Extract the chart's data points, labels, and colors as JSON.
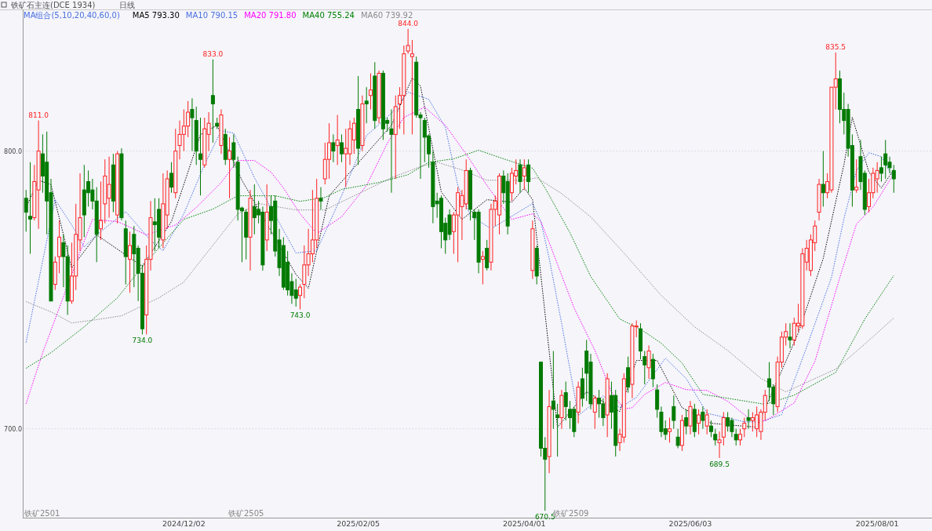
{
  "chart_data": {
    "type": "candlestick",
    "title": "铁矿石主连(DCE 1934)",
    "subtitle": "日线",
    "legend_title": "MA组合(5,10,20,40,60,0)",
    "categories": [
      null,
      null,
      null,
      null,
      null,
      null,
      null,
      null,
      null,
      null,
      null,
      null,
      null,
      null,
      null,
      null,
      null,
      null,
      null,
      null,
      null,
      null,
      null,
      null,
      null,
      null,
      null,
      null,
      null,
      null,
      null,
      null,
      null,
      null,
      null,
      null,
      null,
      null,
      "2024/12/02",
      null,
      null,
      null,
      null,
      null,
      null,
      null,
      null,
      null,
      null,
      null,
      null,
      null,
      null,
      null,
      null,
      null,
      null,
      null,
      null,
      null,
      null,
      null,
      null,
      null,
      null,
      null,
      null,
      null,
      null,
      null,
      null,
      null,
      null,
      null,
      null,
      null,
      null,
      null,
      null,
      null,
      "2025/02/05",
      null,
      null,
      null,
      null,
      null,
      null,
      null,
      null,
      null,
      null,
      null,
      null,
      null,
      null,
      null,
      null,
      null,
      null,
      null,
      null,
      null,
      null,
      null,
      null,
      null,
      null,
      null,
      null,
      null,
      null,
      null,
      null,
      null,
      null,
      null,
      null,
      null,
      null,
      null,
      "2025/04/01",
      null,
      null,
      null,
      null,
      null,
      null,
      null,
      null,
      null,
      null,
      null,
      null,
      null,
      null,
      null,
      null,
      null,
      null,
      null,
      null,
      null,
      null,
      null,
      null,
      null,
      null,
      null,
      null,
      null,
      null,
      null,
      null,
      null,
      null,
      null,
      null,
      null,
      null,
      null,
      "2025/06/03",
      null,
      null,
      null,
      null,
      null,
      null,
      null,
      null,
      null,
      null,
      null,
      null,
      null,
      null,
      null,
      null,
      null,
      null,
      null,
      null,
      null,
      null,
      null,
      null,
      null,
      null,
      null,
      null,
      null,
      null,
      null,
      null,
      null,
      null,
      null,
      null,
      null,
      null,
      null,
      null,
      null,
      null,
      null,
      null,
      "2025/08/01",
      null,
      null,
      null,
      null
    ],
    "ylim": [
      668,
      851
    ],
    "yticks": [
      {
        "value": 800,
        "label": "800.0"
      },
      {
        "value": 700,
        "label": "700.0"
      }
    ],
    "grid": "y",
    "legend": "top left",
    "colors": [
      "#007a00",
      "#007a00",
      "#ff2020",
      "#ff2020",
      "#007a00",
      "#007a00",
      "#007a00",
      "#ff2020",
      "#ff2020",
      "#007a00",
      "#007a00",
      "#ff2020",
      "#ff2020",
      "#ff2020",
      "#007a00",
      "#007a00",
      "#007a00",
      "#007a00",
      "#ff2020",
      "#ff2020",
      "#ff2020",
      "#007a00",
      "#ff2020",
      "#007a00",
      "#007a00",
      "#ff2020",
      "#007a00",
      "#007a00",
      "#007a00",
      "#ff2020",
      "#ff2020",
      "#007a00",
      "#007a00",
      "#ff2020",
      "#ff2020",
      "#007a00",
      "#ff2020",
      "#ff2020",
      "#ff2020",
      "#ff2020",
      "#007a00",
      "#007a00",
      "#007a00",
      "#ff2020",
      "#ff2020",
      "#007a00",
      "#007a00",
      "#ff2020",
      "#007a00",
      "#ff2020",
      "#007a00",
      "#007a00",
      "#007a00",
      "#007a00",
      "#ff2020",
      "#007a00",
      "#007a00",
      "#007a00",
      "#ff2020",
      "#007a00",
      "#007a00",
      "#007a00",
      "#007a00",
      "#007a00",
      "#007a00",
      "#007a00",
      "#ff2020",
      "#ff2020",
      "#ff2020",
      "#ff2020",
      "#ff2020",
      "#007a00",
      "#ff2020",
      "#ff2020",
      "#007a00",
      "#ff2020",
      "#007a00",
      "#ff2020",
      "#ff2020",
      "#ff2020",
      "#007a00",
      "#ff2020",
      "#007a00",
      "#ff2020",
      "#007a00",
      "#ff2020",
      "#007a00",
      "#007a00",
      "#007a00",
      "#ff2020",
      "#ff2020",
      "#ff2020",
      "#ff2020",
      "#ff2020",
      "#007a00",
      "#007a00",
      "#007a00",
      "#007a00",
      "#007a00",
      "#007a00",
      "#007a00",
      "#007a00",
      "#007a00",
      "#ff2020",
      "#ff2020",
      "#ff2020",
      "#ff2020",
      "#007a00",
      "#007a00",
      "#007a00",
      "#ff2020",
      "#007a00",
      "#ff2020",
      "#ff2020",
      "#ff2020",
      "#007a00",
      "#007a00",
      "#ff2020",
      "#ff2020",
      "#007a00",
      "#ff2020",
      "#007a00",
      "#ff2020",
      "#007a00",
      "#007a00",
      "#007a00",
      "#ff2020",
      "#007a00",
      "#007a00",
      "#ff2020",
      "#007a00",
      "#007a00",
      "#007a00",
      "#ff2020",
      "#007a00",
      "#007a00",
      "#007a00",
      "#ff2020",
      "#007a00",
      "#007a00",
      "#ff2020",
      "#007a00",
      "#007a00",
      "#ff2020",
      "#ff2020",
      "#007a00",
      "#ff2020",
      "#ff2020",
      "#007a00",
      "#007a00",
      "#ff2020",
      "#007a00",
      "#007a00",
      "#007a00",
      "#007a00",
      "#ff2020",
      "#007a00",
      "#007a00",
      "#ff2020",
      "#007a00",
      "#ff2020",
      "#007a00",
      "#ff2020",
      "#007a00",
      "#ff2020",
      "#007a00",
      "#007a00",
      "#ff2020",
      "#ff2020",
      "#007a00",
      "#007a00",
      "#007a00",
      "#ff2020",
      "#ff2020",
      "#007a00",
      "#ff2020",
      "#ff2020",
      "#ff2020",
      "#ff2020",
      "#007a00",
      "#007a00",
      "#ff2020",
      "#ff2020",
      "#ff2020",
      "#007a00",
      "#ff2020",
      "#ff2020",
      "#ff2020",
      "#ff2020",
      "#ff2020",
      "#ff2020",
      "#ff2020",
      "#007a00",
      "#ff2020",
      "#ff2020",
      "#ff2020",
      "#007a00",
      "#007a00",
      "#007a00",
      "#007a00",
      "#ff2020",
      "#007a00",
      "#007a00",
      "#ff2020",
      "#ff2020",
      "#ff2020",
      "#007a00",
      "#007a00",
      "#007a00",
      "#007a00"
    ],
    "ohlc": [
      [
        783,
        786,
        771,
        778
      ],
      [
        776.5,
        796,
        763,
        775.5
      ],
      [
        776,
        795,
        775,
        789
      ],
      [
        786,
        811,
        772,
        800
      ],
      [
        799,
        806,
        785,
        791
      ],
      [
        796,
        807,
        770,
        782
      ],
      [
        785,
        790,
        746,
        746
      ],
      [
        752,
        762,
        750,
        760
      ],
      [
        762,
        775,
        756,
        769
      ],
      [
        767,
        770,
        751,
        762
      ],
      [
        762,
        766,
        741,
        746
      ],
      [
        746,
        767,
        745,
        755
      ],
      [
        755,
        781,
        750,
        770
      ],
      [
        768,
        792,
        764,
        776
      ],
      [
        786,
        795,
        769,
        777
      ],
      [
        789,
        793,
        780,
        785
      ],
      [
        786,
        790,
        779,
        782
      ],
      [
        782,
        787,
        760,
        770
      ],
      [
        772,
        789,
        768,
        775
      ],
      [
        781,
        797,
        774,
        791
      ],
      [
        783,
        798,
        776,
        788
      ],
      [
        795,
        799,
        778,
        782
      ],
      [
        777,
        800,
        774,
        799
      ],
      [
        799,
        801,
        775,
        776
      ],
      [
        772,
        775,
        752,
        762
      ],
      [
        761,
        771,
        749,
        766
      ],
      [
        770,
        773,
        751,
        763
      ],
      [
        765,
        766,
        746,
        756
      ],
      [
        756,
        759,
        734,
        736
      ],
      [
        741,
        766,
        734,
        761
      ],
      [
        761,
        782,
        757,
        776
      ],
      [
        774.5,
        783,
        764,
        773.5
      ],
      [
        779,
        783,
        765,
        769
      ],
      [
        768,
        792,
        765,
        781
      ],
      [
        777,
        793,
        772,
        790
      ],
      [
        792,
        796,
        785,
        787
      ],
      [
        785,
        808,
        783,
        800
      ],
      [
        802,
        811,
        797,
        806
      ],
      [
        806,
        815,
        800,
        809
      ],
      [
        809,
        818,
        805,
        814
      ],
      [
        815,
        819,
        800,
        812
      ],
      [
        811,
        816,
        795,
        800
      ],
      [
        799,
        812,
        784,
        797
      ],
      [
        795,
        812,
        794,
        808
      ],
      [
        806,
        814,
        800,
        810
      ],
      [
        820,
        833,
        803,
        817
      ],
      [
        810,
        812,
        808,
        809
      ],
      [
        802,
        815,
        799,
        813
      ],
      [
        806,
        808,
        795,
        797
      ],
      [
        797,
        805,
        783,
        800
      ],
      [
        803,
        806,
        794,
        797
      ],
      [
        796,
        798,
        775,
        779
      ],
      [
        779.5,
        780,
        760,
        778.5
      ],
      [
        778,
        779,
        761,
        769
      ],
      [
        769,
        786,
        757,
        783
      ],
      [
        780,
        788,
        770,
        776
      ],
      [
        779,
        782,
        774,
        777
      ],
      [
        778,
        780,
        757,
        759
      ],
      [
        768,
        788,
        764,
        778
      ],
      [
        780,
        784,
        770,
        775
      ],
      [
        782,
        784,
        762,
        764
      ],
      [
        768,
        772,
        755,
        758
      ],
      [
        766,
        769,
        750,
        751
      ],
      [
        760,
        764,
        748,
        750
      ],
      [
        753,
        756,
        745,
        748
      ],
      [
        750,
        754,
        744,
        747
      ],
      [
        748,
        752,
        743,
        751
      ],
      [
        752,
        766,
        747,
        759
      ],
      [
        759,
        772,
        755,
        763
      ],
      [
        763,
        786,
        760,
        768
      ],
      [
        768,
        790,
        765,
        783
      ],
      [
        783,
        787,
        779,
        782
      ],
      [
        790,
        803,
        788,
        797
      ],
      [
        797,
        810,
        790,
        803
      ],
      [
        803,
        806,
        796,
        800
      ],
      [
        802,
        813,
        795,
        804
      ],
      [
        803,
        806,
        796,
        799
      ],
      [
        799,
        808,
        787,
        801
      ],
      [
        799,
        811,
        795,
        808
      ],
      [
        804,
        812,
        799,
        810
      ],
      [
        815,
        827,
        795,
        801
      ],
      [
        802,
        820,
        800,
        817
      ],
      [
        818,
        823,
        810,
        817
      ],
      [
        820,
        828,
        815,
        822
      ],
      [
        827,
        832,
        808,
        811
      ],
      [
        812,
        829,
        810,
        828
      ],
      [
        828,
        829,
        804,
        808
      ],
      [
        811,
        812,
        807,
        810
      ],
      [
        808,
        815,
        785,
        806
      ],
      [
        806,
        820,
        790,
        816
      ],
      [
        817,
        823,
        808,
        820
      ],
      [
        820,
        838,
        806,
        835
      ],
      [
        836,
        844,
        835,
        838
      ],
      [
        834,
        840,
        806,
        835
      ],
      [
        832,
        834,
        812,
        813
      ],
      [
        813,
        814,
        790,
        812
      ],
      [
        811,
        812,
        796,
        805
      ],
      [
        805.5,
        806,
        794,
        799
      ],
      [
        796,
        800,
        774,
        780
      ],
      [
        782,
        785,
        776,
        781
      ],
      [
        783,
        784,
        765,
        771
      ],
      [
        774,
        776,
        763,
        768
      ],
      [
        777,
        779,
        768,
        770
      ],
      [
        771,
        778,
        763,
        777
      ],
      [
        777,
        787,
        760,
        785
      ],
      [
        780,
        786,
        768,
        784
      ],
      [
        781,
        797,
        779,
        793
      ],
      [
        793,
        794,
        775,
        779
      ],
      [
        778,
        779,
        768,
        776
      ],
      [
        778,
        779,
        756,
        760
      ],
      [
        761,
        764,
        752,
        762
      ],
      [
        765,
        768,
        757,
        758
      ],
      [
        760,
        781,
        757,
        779
      ],
      [
        779,
        784,
        773,
        782
      ],
      [
        777,
        792,
        770,
        791
      ],
      [
        791,
        793,
        781,
        785
      ],
      [
        789,
        792,
        770,
        773
      ],
      [
        785,
        794,
        782,
        792
      ],
      [
        791,
        797,
        788,
        793
      ],
      [
        795,
        797,
        785,
        789
      ],
      [
        791,
        797,
        786,
        794
      ],
      [
        795,
        797,
        785,
        789
      ],
      [
        757,
        775,
        754,
        772
      ],
      [
        765,
        766,
        752,
        755
      ],
      [
        724,
        724,
        690,
        693
      ],
      [
        693,
        697,
        670.5,
        689
      ],
      [
        690,
        714,
        684,
        708
      ],
      [
        710,
        728,
        700,
        707
      ],
      [
        705,
        709,
        690,
        704
      ],
      [
        704,
        714,
        700,
        712
      ],
      [
        713,
        717,
        703,
        708
      ],
      [
        707,
        710,
        700,
        704
      ],
      [
        707,
        708,
        697,
        699
      ],
      [
        706,
        717,
        702,
        715
      ],
      [
        718,
        722,
        708,
        711
      ],
      [
        728,
        732,
        710,
        720
      ],
      [
        724,
        727,
        707,
        709
      ],
      [
        706,
        712,
        700,
        711
      ],
      [
        711,
        714,
        704,
        709
      ],
      [
        709,
        711,
        701,
        704
      ],
      [
        705,
        720,
        697,
        718
      ],
      [
        712,
        717,
        700,
        706
      ],
      [
        712,
        714,
        690,
        694
      ],
      [
        695,
        700,
        692,
        698
      ],
      [
        697,
        720,
        695,
        718
      ],
      [
        722,
        726,
        713,
        715
      ],
      [
        716,
        738,
        711,
        737
      ],
      [
        737,
        739,
        733,
        737
      ],
      [
        736,
        738,
        725,
        728
      ],
      [
        726,
        728,
        716,
        723
      ],
      [
        722,
        730,
        718,
        728
      ],
      [
        725,
        727,
        715,
        718
      ],
      [
        714,
        716,
        704,
        707
      ],
      [
        706,
        708,
        697,
        699
      ],
      [
        700,
        703,
        696,
        698
      ],
      [
        699,
        704,
        695,
        700
      ],
      [
        708,
        712,
        700,
        703
      ],
      [
        697,
        700,
        693,
        694
      ],
      [
        694,
        705,
        692,
        703
      ],
      [
        704,
        707,
        698,
        701
      ],
      [
        701,
        710,
        698,
        708
      ],
      [
        707,
        709,
        697,
        699
      ],
      [
        702,
        707,
        698,
        705
      ],
      [
        706,
        708,
        700,
        703
      ],
      [
        701,
        707,
        698,
        705
      ],
      [
        701,
        703,
        697,
        699
      ],
      [
        698,
        700,
        694,
        696
      ],
      [
        695,
        699,
        689.5,
        696
      ],
      [
        697,
        706,
        694,
        704
      ],
      [
        704,
        706,
        699,
        701
      ],
      [
        703,
        704,
        697,
        699
      ],
      [
        698,
        700,
        694,
        696
      ],
      [
        696,
        700,
        694,
        698
      ],
      [
        700,
        704,
        697,
        702
      ],
      [
        704,
        707,
        700,
        703
      ],
      [
        703,
        706,
        699,
        704
      ],
      [
        700,
        708,
        697,
        705
      ],
      [
        699,
        707,
        696,
        706
      ],
      [
        706,
        714,
        703,
        712
      ],
      [
        718,
        724,
        710,
        715
      ],
      [
        715,
        716,
        705,
        709
      ],
      [
        708,
        726,
        706,
        724
      ],
      [
        724,
        735,
        722,
        733
      ],
      [
        733,
        738,
        730,
        735
      ],
      [
        733,
        738,
        729,
        732
      ],
      [
        732,
        740,
        730,
        738
      ],
      [
        737,
        745,
        735,
        738
      ],
      [
        737,
        765,
        736,
        763
      ],
      [
        760,
        768,
        757,
        765
      ],
      [
        757,
        770,
        755,
        768
      ],
      [
        767,
        775,
        764,
        773
      ],
      [
        778,
        790,
        775,
        788
      ],
      [
        788,
        800,
        780,
        785
      ],
      [
        785,
        792,
        783,
        789
      ],
      [
        786,
        823,
        785,
        823
      ],
      [
        823,
        835.5,
        815,
        826
      ],
      [
        826,
        829,
        810,
        815
      ],
      [
        815,
        821,
        806,
        811
      ],
      [
        815,
        817,
        798,
        801
      ],
      [
        802,
        806,
        780,
        786
      ],
      [
        786,
        797,
        785,
        787
      ],
      [
        798,
        804,
        786,
        789
      ],
      [
        792,
        793,
        777,
        779
      ],
      [
        780,
        790,
        778,
        785
      ],
      [
        785,
        794,
        783,
        792
      ],
      [
        790,
        796,
        785,
        793
      ],
      [
        794,
        798,
        789,
        792
      ],
      [
        799,
        804,
        790,
        795
      ],
      [
        796,
        798,
        792,
        794
      ],
      [
        793,
        795,
        785,
        790
      ]
    ],
    "series": [
      {
        "type": "line",
        "name": "MA5 793.30",
        "color": "#000000",
        "line_style": "dotted",
        "values": [
          779.7,
          null,
          null,
          789.5,
          null,
          null,
          787.9,
          null,
          null,
          null,
          null,
          757.9,
          null,
          null,
          null,
          null,
          null,
          769.8,
          null,
          null,
          null,
          null,
          null,
          null,
          null,
          null,
          null,
          null,
          758.5,
          null,
          null,
          null,
          null,
          null,
          null,
          774.6,
          null,
          null,
          null,
          null,
          null,
          null,
          805.9,
          null,
          null,
          null,
          809.3,
          null,
          null,
          null,
          null,
          null,
          789.5,
          null,
          null,
          null,
          null,
          null,
          null,
          null,
          null,
          null,
          null,
          null,
          null,
          755.6,
          null,
          null,
          750.6,
          null,
          null,
          null,
          null,
          783.9,
          null,
          null,
          null,
          null,
          null,
          null,
          null,
          null,
          null,
          null,
          null,
          null,
          null,
          null,
          809.3,
          null,
          null,
          null,
          null,
          826.3,
          null,
          823.4,
          null,
          null,
          null,
          null,
          785.3,
          null,
          null,
          null,
          null,
          775.4,
          null,
          null,
          null,
          null,
          null,
          782.5,
          null,
          null,
          null,
          null,
          null,
          781.6,
          null,
          null,
          786.7,
          null,
          782.5,
          null,
          null,
          null,
          null,
          null,
          700.6,
          null,
          null,
          null,
          null,
          null,
          null,
          713.3,
          null,
          null,
          null,
          null,
          null,
          null,
          null,
          706.2,
          null,
          null,
          null,
          724.6,
          null,
          null,
          null,
          null,
          724.6,
          null,
          null,
          null,
          null,
          null,
          707.6,
          null,
          null,
          null,
          null,
          null,
          null,
          702,
          null,
          null,
          null,
          701.4,
          null,
          null,
          null,
          null,
          null,
          null,
          700.6,
          null,
          null,
          null,
          null,
          null,
          null,
          null,
          null,
          null,
          734.5,
          null,
          null,
          null,
          null,
          null,
          761.3,
          null,
          null,
          null,
          null,
          795.2,
          null,
          812.1,
          null,
          null,
          null,
          792.4,
          null,
          null,
          786.7,
          null,
          null,
          793.3
        ]
      },
      {
        "type": "line",
        "name": "MA10 790.15",
        "color": "#4a6fe0",
        "line_style": "dotted",
        "values": [
          731.1,
          null,
          null,
          null,
          null,
          null,
          null,
          782.5,
          null,
          null,
          null,
          773.4,
          null,
          null,
          765.5,
          null,
          null,
          769.8,
          null,
          null,
          null,
          null,
          null,
          null,
          778.2,
          null,
          null,
          null,
          null,
          null,
          767.8,
          null,
          null,
          764.1,
          null,
          null,
          null,
          null,
          777.4,
          null,
          null,
          null,
          null,
          795.2,
          null,
          null,
          null,
          807.3,
          null,
          null,
          806.5,
          null,
          null,
          null,
          null,
          790.4,
          null,
          null,
          null,
          null,
          null,
          null,
          null,
          null,
          null,
          763.3,
          null,
          null,
          null,
          null,
          764.1,
          null,
          null,
          null,
          null,
          null,
          783.9,
          null,
          null,
          null,
          null,
          null,
          805.6,
          null,
          null,
          null,
          null,
          null,
          813.6,
          null,
          null,
          null,
          821.2,
          null,
          null,
          null,
          null,
          818.6,
          null,
          null,
          null,
          808.5,
          null,
          null,
          787.6,
          null,
          null,
          776.8,
          null,
          null,
          null,
          null,
          772,
          null,
          null,
          null,
          null,
          null,
          null,
          null,
          null,
          null,
          781.1,
          null,
          774.6,
          null,
          761.3,
          null,
          null,
          737.9,
          null,
          null,
          null,
          704.8,
          null,
          null,
          null,
          null,
          null,
          711.9,
          null,
          null,
          null,
          707.6,
          null,
          null,
          null,
          711.3,
          null,
          null,
          null,
          null,
          null,
          null,
          725.4,
          null,
          null,
          null,
          null,
          718.1,
          null,
          null,
          null,
          null,
          705.6,
          null,
          null,
          null,
          null,
          null,
          null,
          null,
          null,
          702.5,
          null,
          null,
          null,
          702.5,
          null,
          null,
          null,
          null,
          705.1,
          null,
          null,
          null,
          null,
          null,
          729.4,
          null,
          null,
          null,
          null,
          null,
          754.5,
          null,
          null,
          775.7,
          null,
          null,
          792.9,
          null,
          null,
          799.4,
          null,
          null,
          798,
          null,
          null,
          790.1
        ]
      },
      {
        "type": "line",
        "name": "MA20 791.80",
        "color": "#ff00ff",
        "line_style": "dotted",
        "values": [
          709,
          null,
          null,
          null,
          727.4,
          null,
          null,
          null,
          null,
          null,
          null,
          755.6,
          null,
          null,
          null,
          null,
          775.4,
          null,
          null,
          null,
          null,
          null,
          774.6,
          null,
          null,
          772.6,
          null,
          null,
          null,
          769.8,
          null,
          null,
          null,
          null,
          null,
          null,
          773.4,
          null,
          null,
          null,
          null,
          779.7,
          null,
          null,
          null,
          null,
          null,
          788.7,
          null,
          null,
          null,
          796.6,
          null,
          null,
          null,
          796.6,
          null,
          null,
          null,
          792.4,
          null,
          null,
          786.7,
          null,
          null,
          null,
          777.4,
          null,
          null,
          null,
          770.3,
          null,
          null,
          null,
          null,
          null,
          776.3,
          null,
          null,
          null,
          null,
          null,
          787.6,
          null,
          null,
          null,
          null,
          802.8,
          null,
          null,
          null,
          812.1,
          null,
          null,
          null,
          null,
          815.8,
          null,
          null,
          null,
          null,
          809.3,
          null,
          null,
          null,
          null,
          798.9,
          null,
          null,
          null,
          null,
          787.6,
          null,
          null,
          null,
          null,
          null,
          775.4,
          null,
          null,
          null,
          null,
          777.4,
          null,
          774.6,
          null,
          767,
          null,
          null,
          null,
          null,
          null,
          743.5,
          null,
          null,
          null,
          null,
          728.2,
          null,
          null,
          null,
          713.3,
          null,
          null,
          707.1,
          null,
          707.6,
          null,
          null,
          712.4,
          null,
          null,
          null,
          null,
          716.7,
          null,
          null,
          null,
          null,
          714.1,
          null,
          null,
          null,
          null,
          713.8,
          null,
          null,
          null,
          null,
          709.9,
          null,
          null,
          null,
          null,
          703.9,
          null,
          null,
          null,
          702.8,
          null,
          null,
          null,
          null,
          null,
          null,
          709.3,
          null,
          null,
          null,
          null,
          724.3,
          null,
          null,
          null,
          null,
          null,
          754.5,
          null,
          null,
          null,
          773.7,
          null,
          null,
          null,
          779.9,
          null,
          null,
          null,
          null,
          791.8
        ]
      },
      {
        "type": "line",
        "name": "MA40 755.24",
        "color": "#008000",
        "line_style": "dotted",
        "values": [
          721.8,
          null,
          null,
          null,
          null,
          null,
          727.4,
          null,
          null,
          null,
          null,
          null,
          null,
          null,
          736.7,
          null,
          null,
          null,
          null,
          null,
          null,
          null,
          747.2,
          null,
          null,
          null,
          null,
          756.5,
          null,
          null,
          null,
          null,
          null,
          766.9,
          null,
          null,
          null,
          null,
          775.4,
          null,
          null,
          null,
          null,
          null,
          null,
          779.1,
          null,
          null,
          null,
          null,
          null,
          783.9,
          null,
          null,
          null,
          null,
          null,
          null,
          null,
          null,
          783.9,
          null,
          null,
          null,
          null,
          null,
          781.9,
          null,
          null,
          null,
          null,
          null,
          783.3,
          null,
          null,
          null,
          786.2,
          null,
          null,
          null,
          null,
          null,
          null,
          null,
          null,
          788.7,
          null,
          null,
          null,
          null,
          null,
          null,
          791.5,
          null,
          null,
          null,
          null,
          796,
          null,
          null,
          null,
          null,
          null,
          797.2,
          null,
          null,
          null,
          null,
          null,
          800.3,
          null,
          null,
          null,
          null,
          null,
          797.2,
          null,
          null,
          null,
          null,
          null,
          null,
          793.8,
          null,
          null,
          786.7,
          null,
          null,
          null,
          null,
          null,
          770.6,
          null,
          null,
          null,
          null,
          754.8,
          null,
          null,
          null,
          null,
          null,
          null,
          739.5,
          null,
          null,
          null,
          null,
          735.9,
          null,
          null,
          null,
          null,
          730.8,
          null,
          null,
          null,
          null,
          723.7,
          null,
          null,
          null,
          null,
          712.4,
          null,
          null,
          null,
          null,
          null,
          null,
          null,
          710.5,
          null,
          null,
          null,
          null,
          null,
          null,
          708.8,
          null,
          null,
          null,
          null,
          null,
          null,
          712.1,
          null,
          null,
          null,
          null,
          null,
          null,
          null,
          null,
          null,
          720.3,
          null,
          null,
          null,
          null,
          null,
          null,
          739.5,
          null,
          null,
          null,
          null,
          null,
          null,
          755.2
        ]
      },
      {
        "type": "line",
        "name": "MA60 739.92",
        "color": "#8c8c8c",
        "line_style": "dotted",
        "values": [
          745.8,
          null,
          null,
          null,
          null,
          null,
          742.1,
          null,
          null,
          null,
          null,
          738.1,
          null,
          null,
          null,
          null,
          null,
          739.3,
          null,
          null,
          null,
          null,
          null,
          740.7,
          null,
          null,
          null,
          null,
          null,
          null,
          null,
          null,
          747.2,
          null,
          null,
          null,
          null,
          null,
          752.8,
          null,
          null,
          null,
          null,
          null,
          null,
          766.1,
          null,
          null,
          null,
          null,
          null,
          777.4,
          null,
          null,
          null,
          null,
          781.1,
          null,
          null,
          null,
          null,
          null,
          null,
          null,
          null,
          778.8,
          null,
          null,
          null,
          null,
          null,
          null,
          778.8,
          null,
          null,
          null,
          null,
          null,
          null,
          783.9,
          null,
          null,
          null,
          null,
          null,
          null,
          null,
          null,
          790.4,
          null,
          null,
          null,
          null,
          null,
          null,
          794.4,
          null,
          null,
          null,
          796,
          null,
          null,
          null,
          null,
          null,
          793.2,
          null,
          null,
          null,
          null,
          null,
          789.5,
          null,
          null,
          null,
          null,
          null,
          null,
          null,
          null,
          789.5,
          null,
          null,
          790.4,
          null,
          null,
          null,
          null,
          null,
          784.7,
          null,
          null,
          null,
          null,
          null,
          null,
          776.3,
          null,
          null,
          null,
          null,
          null,
          null,
          null,
          763.3,
          null,
          null,
          null,
          null,
          null,
          null,
          null,
          null,
          748,
          null,
          null,
          null,
          null,
          null,
          null,
          null,
          736.7,
          null,
          null,
          null,
          null,
          null,
          null,
          null,
          728.2,
          null,
          null,
          null,
          null,
          null,
          null,
          null,
          718.1,
          null,
          null,
          null,
          null,
          null,
          713.3,
          null,
          null,
          null,
          null,
          null,
          null,
          null,
          null,
          null,
          null,
          null,
          721.5,
          null,
          null,
          null,
          null,
          null,
          null,
          730.5,
          null,
          null,
          null,
          null,
          null,
          null,
          739.9
        ]
      }
    ],
    "annotations": [
      "811.0",
      "734.0",
      "833.0",
      "743.0",
      "844.0",
      "670.5",
      "689.5",
      "835.5",
      "铁矿2501",
      "铁矿2505",
      "铁矿2509"
    ]
  }
}
